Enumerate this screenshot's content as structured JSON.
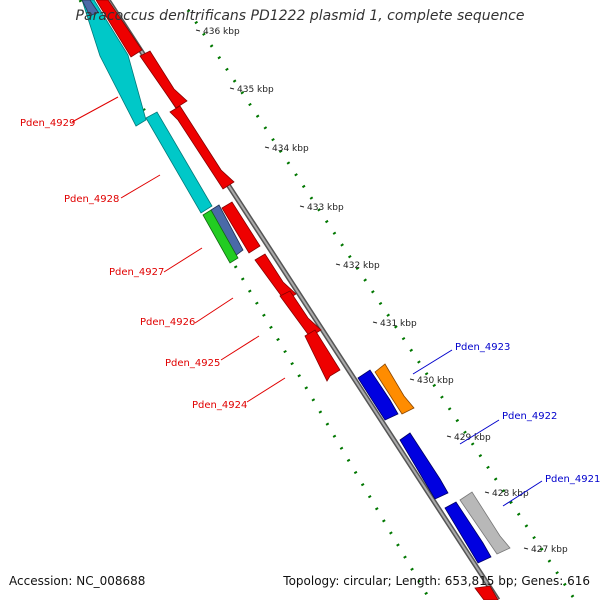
{
  "title": "Paracoccus denitrificans PD1222 plasmid 1, complete sequence",
  "footer": {
    "accession": "Accession: NC_008688",
    "summary": "Topology: circular; Length: 653,815 bp; Genes: 616"
  },
  "kbp_labels": [
    "436 kbp",
    "435 kbp",
    "434 kbp",
    "433 kbp",
    "432 kbp",
    "431 kbp",
    "430 kbp",
    "429 kbp",
    "428 kbp",
    "427 kbp"
  ],
  "genes_reverse": [
    {
      "name": "Pden_4929"
    },
    {
      "name": "Pden_4928"
    },
    {
      "name": "Pden_4927"
    },
    {
      "name": "Pden_4926"
    },
    {
      "name": "Pden_4925"
    },
    {
      "name": "Pden_4924"
    }
  ],
  "genes_forward": [
    {
      "name": "Pden_4923"
    },
    {
      "name": "Pden_4922"
    },
    {
      "name": "Pden_4921"
    }
  ],
  "colors": {
    "reverse_label": "#e00000",
    "forward_label": "#0000cc",
    "cds_red": "#ee0000",
    "cds_cyan": "#00c8c8",
    "cds_blue": "#0000e0",
    "cds_orange": "#ff8c00",
    "cds_gray": "#b8b8b8",
    "cds_green": "#22cc22",
    "cds_slate": "#4a6aa8",
    "backbone": "#888888",
    "ticks": "#007700"
  }
}
